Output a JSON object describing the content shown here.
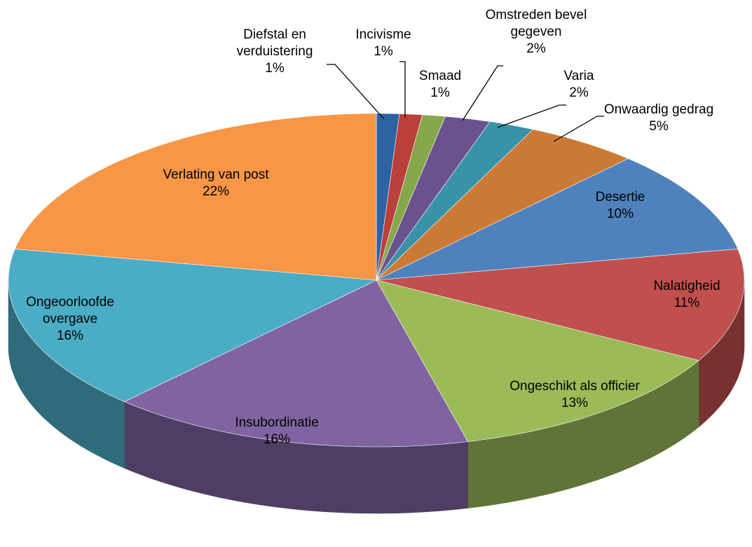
{
  "chart_data": {
    "type": "pie3d",
    "categories": [
      "Diefstal en verduistering",
      "Incivisme",
      "Smaad",
      "Omstreden bevel gegeven",
      "Varia",
      "Onwaardig gedrag",
      "Desertie",
      "Nalatigheid",
      "Ongeschikt als officier",
      "Insubordinatie",
      "Ongeoorloofde overgave",
      "Verlating van post"
    ],
    "values": [
      1,
      1,
      1,
      2,
      2,
      5,
      10,
      11,
      13,
      16,
      16,
      22
    ],
    "value_labels": [
      "1%",
      "1%",
      "1%",
      "2%",
      "2%",
      "5%",
      "10%",
      "11%",
      "13%",
      "16%",
      "16%",
      "22%"
    ],
    "colors": [
      "#2e63a3",
      "#bb3f3b",
      "#86a84a",
      "#6b528f",
      "#3892a8",
      "#cb7a35",
      "#4f81bd",
      "#c0504d",
      "#9bbb59",
      "#8064a2",
      "#4bacc6",
      "#f79646"
    ]
  }
}
